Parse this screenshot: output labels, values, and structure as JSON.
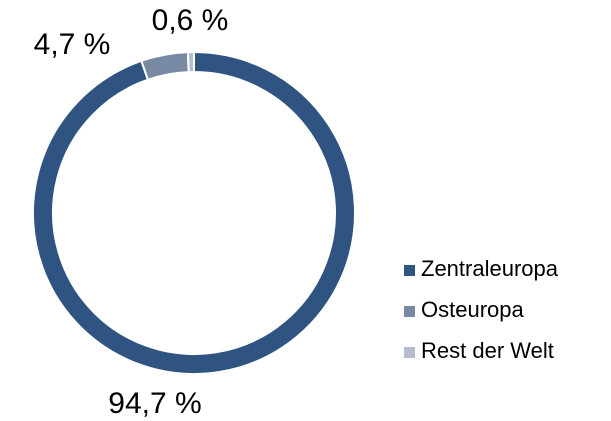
{
  "chart_data": {
    "type": "donut",
    "categories": [
      "Zentraleuropa",
      "Osteuropa",
      "Rest der Welt"
    ],
    "values": [
      94.7,
      4.7,
      0.6
    ],
    "value_labels": [
      "94,7 %",
      "4,7 %",
      "0,6 %"
    ],
    "colors": [
      "#2f5482",
      "#7889a4",
      "#b6bdcc"
    ],
    "legend": "right"
  }
}
